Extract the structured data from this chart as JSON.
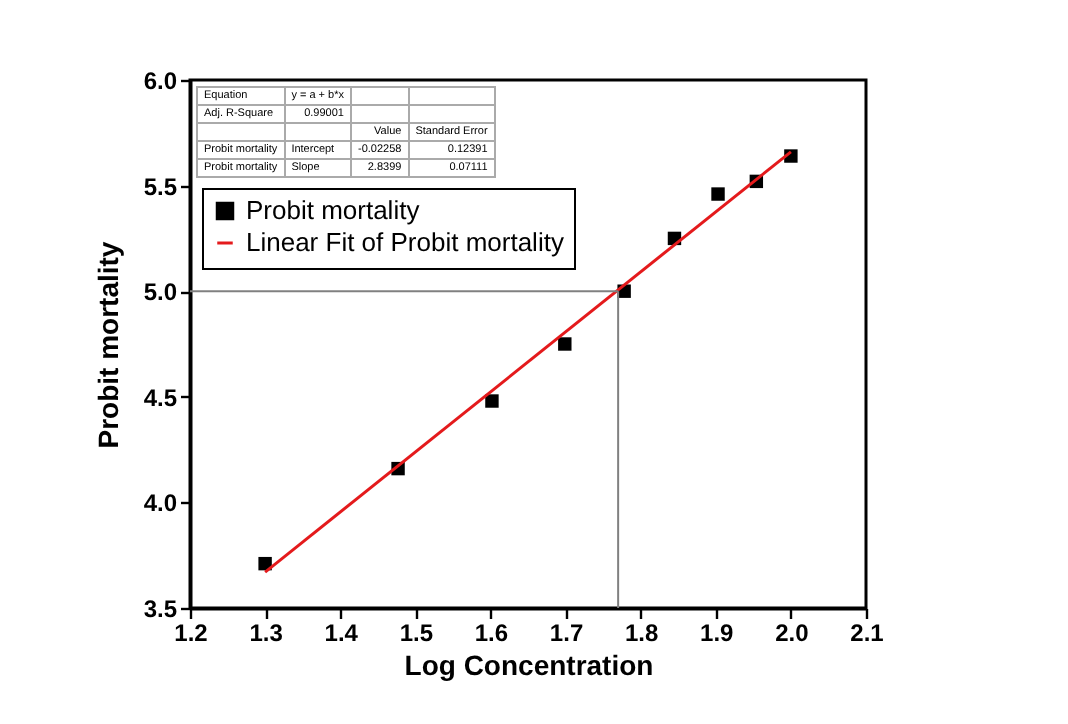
{
  "chart_data": {
    "type": "scatter",
    "xlabel": "Log Concentration",
    "ylabel": "Probit mortality",
    "x": [
      1.3,
      1.477,
      1.602,
      1.699,
      1.778,
      1.845,
      1.903,
      1.954,
      2.0
    ],
    "series": [
      {
        "name": "Probit mortality",
        "type": "scatter",
        "color": "#000000",
        "marker": "square",
        "values": [
          3.71,
          4.16,
          4.48,
          4.75,
          5.0,
          5.25,
          5.46,
          5.52,
          5.64
        ]
      },
      {
        "name": "Linear Fit of Probit mortality",
        "type": "line",
        "color": "#e41a1c",
        "x": [
          1.3,
          2.0
        ],
        "values": [
          3.67,
          5.66
        ]
      }
    ],
    "xlim": [
      1.2,
      2.1
    ],
    "xticks": [
      {
        "value": 1.2,
        "label": "1.2"
      },
      {
        "value": 1.3,
        "label": "1.3"
      },
      {
        "value": 1.4,
        "label": "1.4"
      },
      {
        "value": 1.5,
        "label": "1.5"
      },
      {
        "value": 1.6,
        "label": "1.6"
      },
      {
        "value": 1.7,
        "label": "1.7"
      },
      {
        "value": 1.8,
        "label": "1.8"
      },
      {
        "value": 1.9,
        "label": "1.9"
      },
      {
        "value": 2.0,
        "label": "2.0"
      },
      {
        "value": 2.1,
        "label": "2.1"
      }
    ],
    "ylim": [
      3.5,
      6.0
    ],
    "yticks": [
      {
        "value": 3.5,
        "label": "3.5"
      },
      {
        "value": 4.0,
        "label": "4.0"
      },
      {
        "value": 4.5,
        "label": "4.5"
      },
      {
        "value": 5.0,
        "label": "5.0"
      },
      {
        "value": 5.5,
        "label": "5.5"
      },
      {
        "value": 6.0,
        "label": "6.0"
      }
    ],
    "ref_lines": [
      {
        "axis": "x",
        "value": 1.77,
        "color": "#808080"
      },
      {
        "axis": "y",
        "value": 5.0,
        "color": "#808080"
      }
    ],
    "legend": "top left",
    "grid": false,
    "annotations": [
      "Equation",
      "y = a + b*x",
      "Adj. R-Square",
      "0.99001",
      "Value",
      "Standard Error",
      "Probit mortality",
      "Intercept",
      "-0.02258",
      "0.12391",
      "Probit mortality",
      "Slope",
      "2.8399",
      "0.07111"
    ]
  }
}
